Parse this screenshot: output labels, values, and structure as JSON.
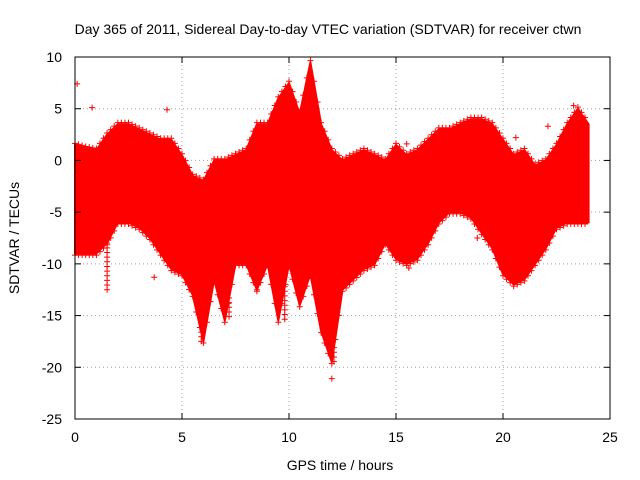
{
  "chart_data": {
    "type": "scatter",
    "title": "Day 365 of 2011, Sidereal Day-to-day VTEC variation (SDTVAR) for receiver ctwn",
    "xlabel": "GPS time / hours",
    "ylabel": "SDTVAR / TECUs",
    "xlim": [
      0,
      25
    ],
    "ylim": [
      -25,
      10
    ],
    "x_ticks": [
      "0",
      "5",
      "10",
      "15",
      "20",
      "25"
    ],
    "y_ticks": [
      "10",
      "5",
      "0",
      "-5",
      "-10",
      "-15",
      "-20",
      "-25"
    ],
    "grid": true,
    "marker": "+",
    "color": "#ff0000",
    "band": {
      "x": [
        0,
        0.5,
        1,
        1.5,
        2,
        2.5,
        3,
        3.5,
        4,
        4.5,
        5,
        5.5,
        6,
        6.5,
        7,
        7.5,
        8,
        8.5,
        9,
        9.5,
        10,
        10.5,
        11,
        11.5,
        12,
        12.5,
        13,
        13.5,
        14,
        14.5,
        15,
        15.5,
        16,
        16.5,
        17,
        17.5,
        18,
        18.5,
        19,
        19.5,
        20,
        20.5,
        21,
        21.5,
        22,
        22.5,
        23,
        23.5,
        24
      ],
      "upper": [
        1.5,
        1.2,
        1.0,
        2.5,
        3.5,
        3.5,
        3.0,
        2.5,
        2.0,
        2.0,
        0.5,
        -1.5,
        -2.0,
        0.0,
        0.0,
        0.5,
        1.0,
        3.5,
        3.5,
        6.0,
        7.5,
        4.5,
        9.5,
        3.5,
        1.0,
        0.0,
        0.5,
        1.0,
        0.5,
        0.0,
        1.5,
        0.5,
        1.0,
        2.0,
        3.0,
        3.0,
        3.5,
        4.0,
        4.0,
        3.5,
        2.0,
        0.5,
        1.0,
        -0.5,
        0.0,
        1.5,
        3.5,
        5.0,
        3.5
      ],
      "lower": [
        -9.0,
        -9.0,
        -9.0,
        -8.0,
        -6.0,
        -6.0,
        -6.5,
        -7.5,
        -9.0,
        -10.5,
        -11.0,
        -13.0,
        -17.5,
        -11.5,
        -15.5,
        -10.0,
        -10.0,
        -12.5,
        -10.0,
        -15.5,
        -10.0,
        -14.0,
        -11.0,
        -16.5,
        -19.5,
        -12.5,
        -11.5,
        -10.5,
        -10.0,
        -8.0,
        -9.5,
        -10.0,
        -9.5,
        -8.0,
        -6.0,
        -5.0,
        -5.0,
        -5.5,
        -7.0,
        -8.5,
        -11.0,
        -12.0,
        -11.5,
        -10.0,
        -8.5,
        -6.5,
        -6.0,
        -6.0,
        -6.0
      ]
    },
    "spikes": [
      {
        "x": 1.5,
        "y_min": -12.5
      },
      {
        "x": 5.9,
        "y_min": -17.5
      },
      {
        "x": 7.2,
        "y_min": -15.5
      },
      {
        "x": 8.5,
        "y_min": -12.5
      },
      {
        "x": 9.8,
        "y_min": -15.5
      },
      {
        "x": 11.3,
        "y_min": -12.0
      },
      {
        "x": 12.1,
        "y_min": -19.5
      }
    ],
    "outliers": [
      {
        "x": 0.1,
        "y": 7.4
      },
      {
        "x": 0.8,
        "y": 5.1
      },
      {
        "x": 4.3,
        "y": 4.9
      },
      {
        "x": 3.7,
        "y": -11.3
      },
      {
        "x": 12.0,
        "y": -21.1
      },
      {
        "x": 15.5,
        "y": 1.6
      },
      {
        "x": 15.6,
        "y": -10.4
      },
      {
        "x": 18.8,
        "y": -7.5
      },
      {
        "x": 19.6,
        "y": -7.5
      },
      {
        "x": 22.1,
        "y": 3.3
      },
      {
        "x": 23.3,
        "y": 5.3
      },
      {
        "x": 20.6,
        "y": 2.2
      }
    ]
  }
}
